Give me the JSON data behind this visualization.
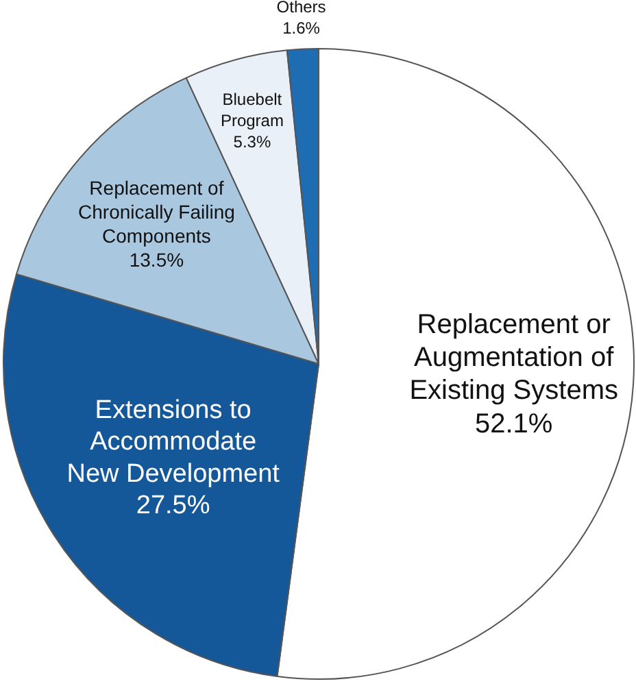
{
  "chart_data": {
    "type": "pie",
    "categories": [
      "Replacement or\nAugmentation of\nExisting Systems",
      "Extensions to\nAccommodate\nNew Development",
      "Replacement of\nChronically Failing\nComponents",
      "Bluebelt\nProgram",
      "Others"
    ],
    "values": [
      52.1,
      27.5,
      13.5,
      5.3,
      1.6
    ],
    "colors": [
      "#ffffff",
      "#15589a",
      "#a9c7df",
      "#e9f0f7",
      "#1e6db3"
    ],
    "value_labels": [
      "52.1%",
      "27.5%",
      "13.5%",
      "5.3%",
      "1.6%"
    ]
  }
}
